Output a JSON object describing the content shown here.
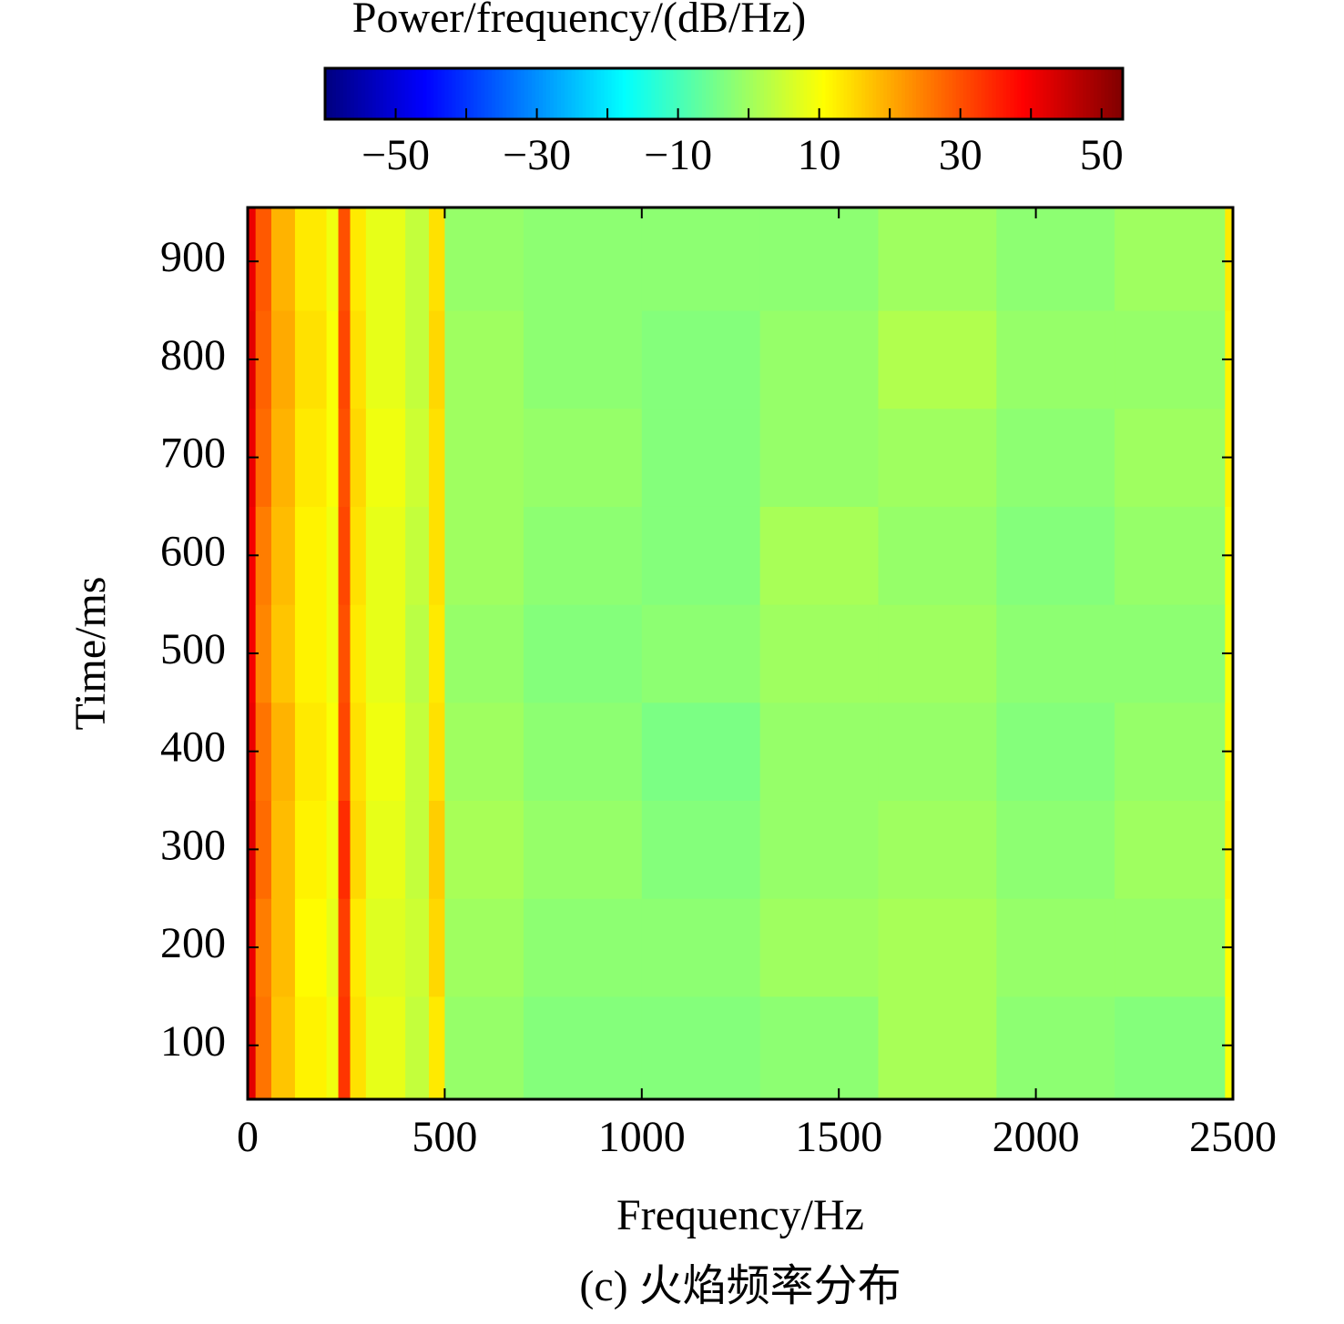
{
  "chart_data": {
    "type": "heatmap",
    "colorbar_label": "Power/frequency/(dB/Hz)",
    "x_label": "Frequency/Hz",
    "y_label": "Time/ms",
    "caption": "(c) 火焰频率分布",
    "colormap": "jet",
    "clim": [
      -60,
      53
    ],
    "cticks": [
      {
        "value": -50,
        "label": "−50"
      },
      {
        "value": -30,
        "label": "−30"
      },
      {
        "value": -10,
        "label": "−10"
      },
      10,
      30,
      50
    ],
    "cbar_minor_ticks": [
      -40,
      -20,
      0,
      20,
      40
    ],
    "xlim": [
      0,
      2500
    ],
    "xticks": [
      0,
      500,
      1000,
      1500,
      2000,
      2500
    ],
    "ylim": [
      45,
      955
    ],
    "yticks": [
      100,
      200,
      300,
      400,
      500,
      600,
      700,
      800,
      900
    ],
    "x_edges": [
      0,
      20,
      60,
      120,
      200,
      230,
      260,
      300,
      400,
      460,
      500,
      700,
      1000,
      1300,
      1600,
      1900,
      2200,
      2480,
      2500
    ],
    "y_edges": [
      45,
      150,
      250,
      350,
      450,
      550,
      650,
      750,
      850,
      955
    ],
    "values": [
      [
        42,
        26,
        17,
        12,
        9,
        33,
        14,
        8,
        4,
        13,
        -1,
        -3,
        -3,
        -2,
        1,
        -2,
        -3,
        10
      ],
      [
        41,
        25,
        18,
        11,
        8,
        32,
        13,
        7,
        5,
        15,
        0,
        -2,
        -2,
        0,
        1,
        -1,
        -1,
        11
      ],
      [
        42,
        27,
        18,
        12,
        9,
        34,
        15,
        8,
        4,
        16,
        1,
        -1,
        -3,
        -1,
        0,
        -2,
        0,
        12
      ],
      [
        41,
        26,
        19,
        13,
        10,
        31,
        14,
        9,
        4,
        14,
        0,
        -2,
        -4,
        -1,
        -1,
        -3,
        -1,
        11
      ],
      [
        40,
        24,
        17,
        12,
        9,
        30,
        13,
        8,
        3,
        13,
        -1,
        -3,
        -2,
        0,
        0,
        -2,
        -2,
        10
      ],
      [
        40,
        25,
        18,
        12,
        9,
        31,
        14,
        8,
        4,
        14,
        0,
        -2,
        -3,
        1,
        -1,
        -3,
        -1,
        11
      ],
      [
        41,
        27,
        19,
        13,
        10,
        30,
        15,
        9,
        5,
        14,
        0,
        -1,
        -3,
        -1,
        0,
        -2,
        0,
        12
      ],
      [
        42,
        28,
        20,
        14,
        10,
        31,
        14,
        8,
        4,
        15,
        0,
        -2,
        -3,
        -1,
        2,
        -1,
        -1,
        12
      ],
      [
        41,
        29,
        19,
        13,
        9,
        30,
        13,
        8,
        4,
        14,
        -1,
        -2,
        -2,
        -2,
        0,
        -2,
        0,
        13
      ]
    ]
  }
}
